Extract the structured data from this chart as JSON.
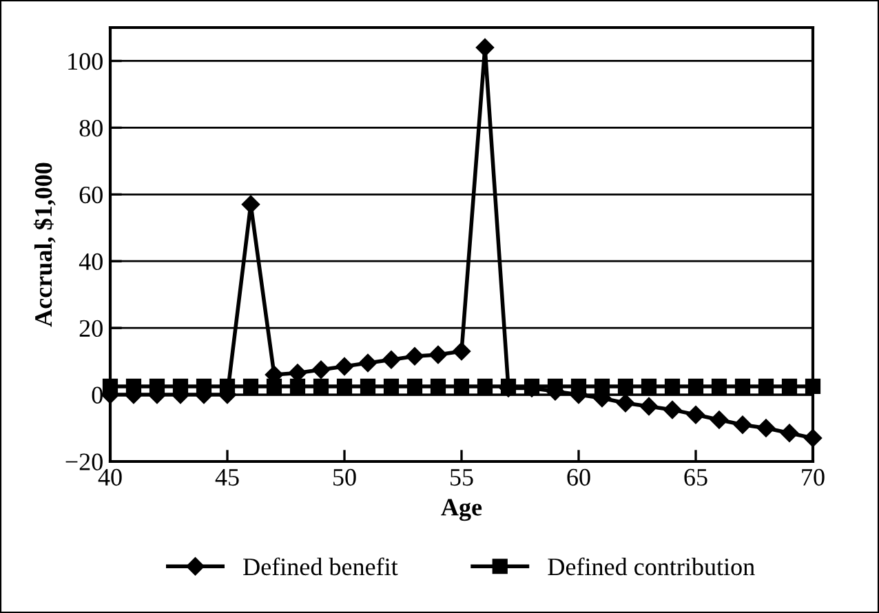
{
  "chart_data": {
    "type": "line",
    "xlabel": "Age",
    "ylabel": "Accrual, $1,000",
    "x": [
      40,
      41,
      42,
      43,
      44,
      45,
      46,
      47,
      48,
      49,
      50,
      51,
      52,
      53,
      54,
      55,
      56,
      57,
      58,
      59,
      60,
      61,
      62,
      63,
      64,
      65,
      66,
      67,
      68,
      69,
      70
    ],
    "series": [
      {
        "name": "Defined benefit",
        "color": "#000000",
        "marker": "diamond",
        "values": [
          0,
          0,
          0,
          0,
          0,
          0,
          57,
          6,
          6.5,
          7.5,
          8.5,
          9.5,
          10.5,
          11.5,
          12,
          13,
          104,
          2,
          2,
          1,
          0,
          -1,
          -2.5,
          -3.5,
          -4.5,
          -6,
          -7.5,
          -9,
          -10,
          -11.5,
          -13
        ]
      },
      {
        "name": "Defined contribution",
        "color": "#000000",
        "marker": "square",
        "values": [
          2.5,
          2.5,
          2.5,
          2.5,
          2.5,
          2.5,
          2.5,
          2.5,
          2.5,
          2.5,
          2.5,
          2.5,
          2.5,
          2.5,
          2.5,
          2.5,
          2.5,
          2.5,
          2.5,
          2.5,
          2.5,
          2.5,
          2.5,
          2.5,
          2.5,
          2.5,
          2.5,
          2.5,
          2.5,
          2.5,
          2.5
        ]
      }
    ],
    "xlim": [
      40,
      70
    ],
    "xticks": [
      40,
      45,
      50,
      55,
      60,
      65,
      70
    ],
    "ylim": [
      -20,
      110
    ],
    "yticks": [
      {
        "value": -20,
        "label": "−20"
      },
      0,
      20,
      40,
      60,
      80,
      100
    ],
    "grid": "y",
    "legend": "bottom",
    "line_style": "solid"
  }
}
